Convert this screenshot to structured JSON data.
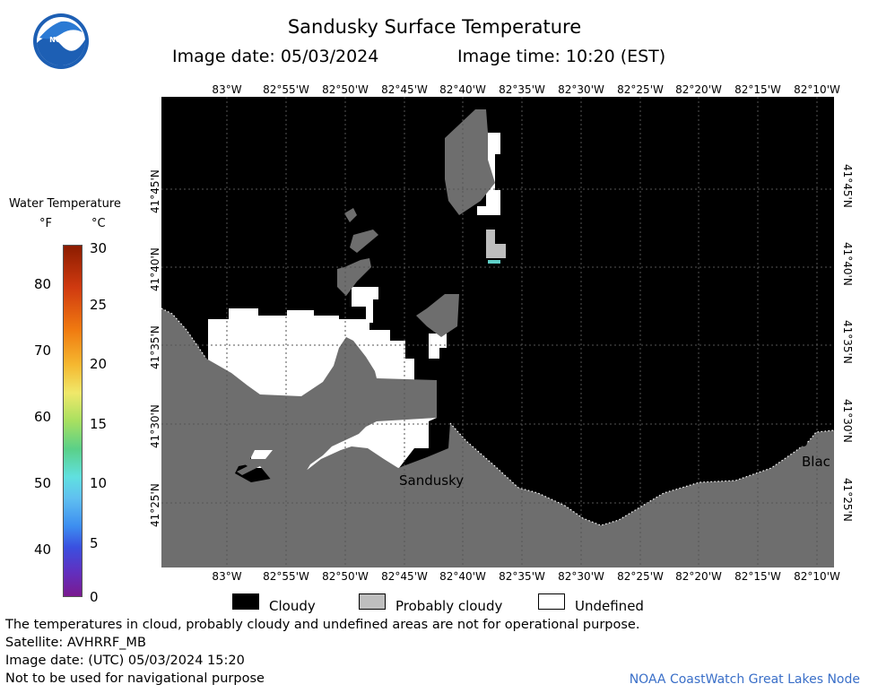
{
  "header": {
    "title": "Sandusky Surface Temperature",
    "image_date": "Image date: 05/03/2024",
    "image_time": "Image time: 10:20 (EST)"
  },
  "logo": {
    "text": "NOAA",
    "icon": "noaa-logo-icon"
  },
  "map": {
    "lon_labels": [
      "83°W",
      "82°55'W",
      "82°50'W",
      "82°45'W",
      "82°40'W",
      "82°35'W",
      "82°30'W",
      "82°25'W",
      "82°20'W",
      "82°15'W",
      "82°10'W"
    ],
    "lat_labels": [
      "41°45'N",
      "41°40'N",
      "41°35'N",
      "41°30'N",
      "41°25'N"
    ],
    "places": {
      "sandusky": "Sandusky",
      "east_edge": "Blac"
    },
    "colors": {
      "cloudy": "#000000",
      "land": "#6e6e6e",
      "undefined": "#ffffff",
      "probably_cloudy": "#bebebe"
    }
  },
  "scale": {
    "title": "Water Temperature",
    "unit_f": "°F",
    "unit_c": "°C",
    "f_ticks": [
      "80",
      "70",
      "60",
      "50",
      "40"
    ],
    "c_ticks": [
      "30",
      "25",
      "20",
      "15",
      "10",
      "5",
      "0"
    ]
  },
  "legend": {
    "cloudy": "Cloudy",
    "probably_cloudy": "Probably cloudy",
    "undefined": "Undefined"
  },
  "footer": {
    "note": "The temperatures in cloud, probably cloudy and undefined areas are not for operational purpose.",
    "satellite": "Satellite: AVHRRF_MB",
    "utc_date": "Image date: (UTC) 05/03/2024  15:20",
    "warning": "Not to be used for navigational purpose",
    "credit": "NOAA CoastWatch Great Lakes Node"
  }
}
